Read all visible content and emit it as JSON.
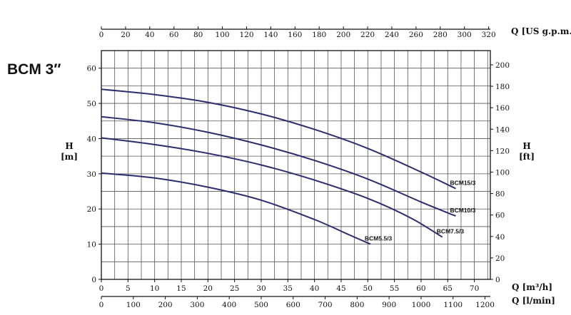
{
  "chart_data": {
    "type": "line",
    "title": "BCM 3″",
    "xlabel": "Q [m³/h]",
    "x_units": {
      "m3h": {
        "label": "Q [m³/h]",
        "range": [
          0,
          73
        ],
        "ticks": [
          0,
          5,
          10,
          15,
          20,
          25,
          30,
          35,
          40,
          45,
          50,
          55,
          60,
          65,
          70
        ]
      },
      "lmin": {
        "label": "Q [l/min]",
        "ticks": [
          0,
          100,
          200,
          300,
          400,
          500,
          600,
          700,
          800,
          900,
          1000,
          1100,
          1200
        ]
      },
      "usgpm": {
        "label": "Q [US g.p.m.]",
        "ticks": [
          0,
          20,
          40,
          60,
          80,
          100,
          120,
          140,
          160,
          180,
          200,
          220,
          240,
          260,
          280,
          300,
          320
        ]
      }
    },
    "ylabel": {
      "line1": "H",
      "line2": "[m]"
    },
    "y_right_label": {
      "line1": "H",
      "line2": "[ft]"
    },
    "ylim": [
      0,
      65
    ],
    "y_ticks": [
      0,
      10,
      20,
      30,
      40,
      50,
      60
    ],
    "y_right_ticks": [
      0,
      20,
      40,
      60,
      80,
      100,
      120,
      140,
      160,
      180,
      200
    ],
    "grid": true,
    "series": [
      {
        "name": "BCM15/3",
        "color": "#2b2d6e",
        "x": [
          0,
          10,
          20,
          30,
          40,
          50,
          60,
          66.5
        ],
        "y": [
          54,
          52.5,
          50.3,
          47,
          42.6,
          37.2,
          30.5,
          25.8
        ]
      },
      {
        "name": "BCM10/3",
        "color": "#2b2d6e",
        "x": [
          0,
          10,
          20,
          30,
          40,
          50,
          60,
          66.5
        ],
        "y": [
          46.2,
          44.5,
          41.8,
          38.2,
          33.8,
          28.5,
          22,
          18
        ]
      },
      {
        "name": "BCM7.5/3",
        "color": "#2b2d6e",
        "x": [
          0,
          10,
          20,
          30,
          40,
          50,
          58,
          64
        ],
        "y": [
          40.2,
          38.3,
          35.8,
          32.5,
          28.2,
          23,
          17.5,
          12
        ]
      },
      {
        "name": "BCM5.5/3",
        "color": "#2b2d6e",
        "x": [
          0,
          10,
          20,
          30,
          40,
          46,
          50.5
        ],
        "y": [
          30.2,
          28.8,
          26.2,
          22.5,
          17,
          13,
          10
        ]
      }
    ]
  }
}
